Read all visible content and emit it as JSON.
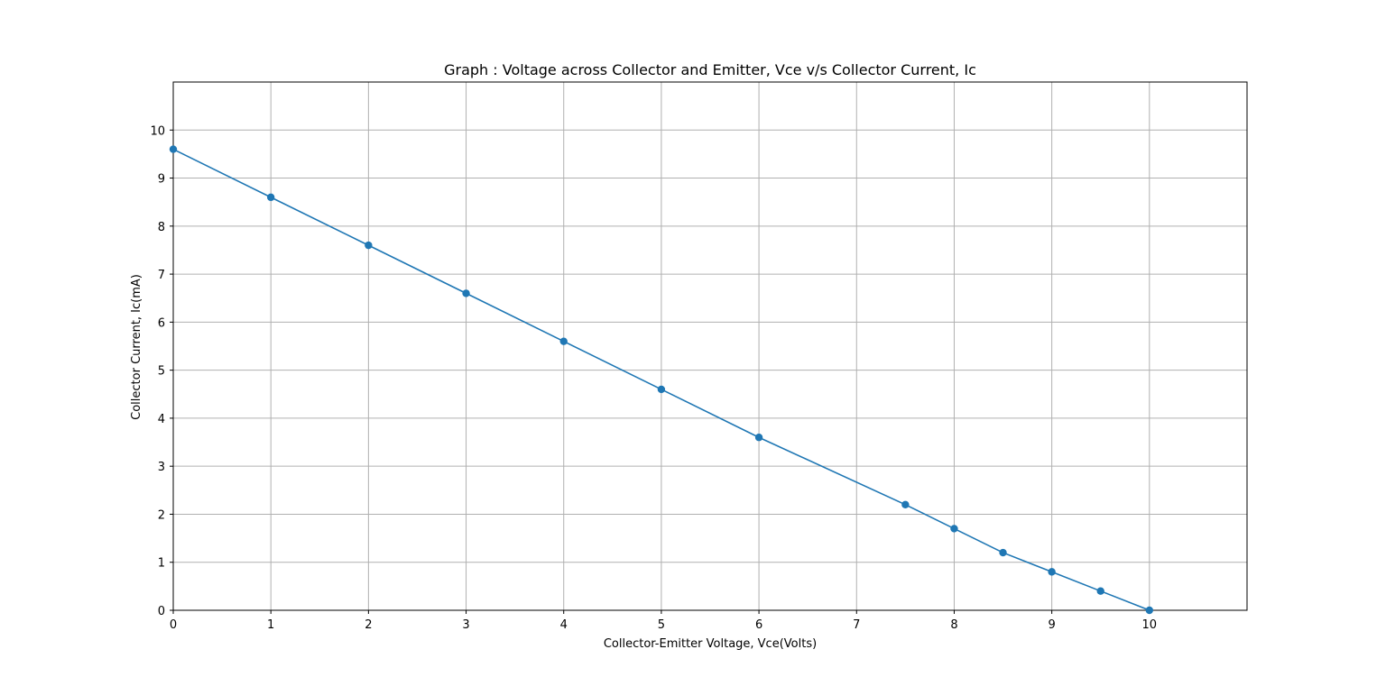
{
  "chart_data": {
    "type": "line",
    "title": "Graph : Voltage across Collector and Emitter, Vce v/s Collector Current, Ic",
    "xlabel": "Collector-Emitter Voltage, Vce(Volts)",
    "ylabel": "Collector Current, Ic(mA)",
    "xlim": [
      0,
      11
    ],
    "ylim": [
      0,
      11
    ],
    "xticks": [
      0,
      1,
      2,
      3,
      4,
      5,
      6,
      7,
      8,
      9,
      10
    ],
    "yticks": [
      0,
      1,
      2,
      3,
      4,
      5,
      6,
      7,
      8,
      9,
      10
    ],
    "grid": true,
    "markers": true,
    "series": [
      {
        "x": [
          0,
          1,
          2,
          3,
          4,
          5,
          6,
          7.5,
          8,
          8.5,
          9,
          9.5,
          10
        ],
        "y": [
          9.6,
          8.6,
          7.6,
          6.6,
          5.6,
          4.6,
          3.6,
          2.2,
          1.7,
          1.2,
          0.8,
          0.4,
          0
        ],
        "color": "#1f77b4"
      }
    ]
  }
}
